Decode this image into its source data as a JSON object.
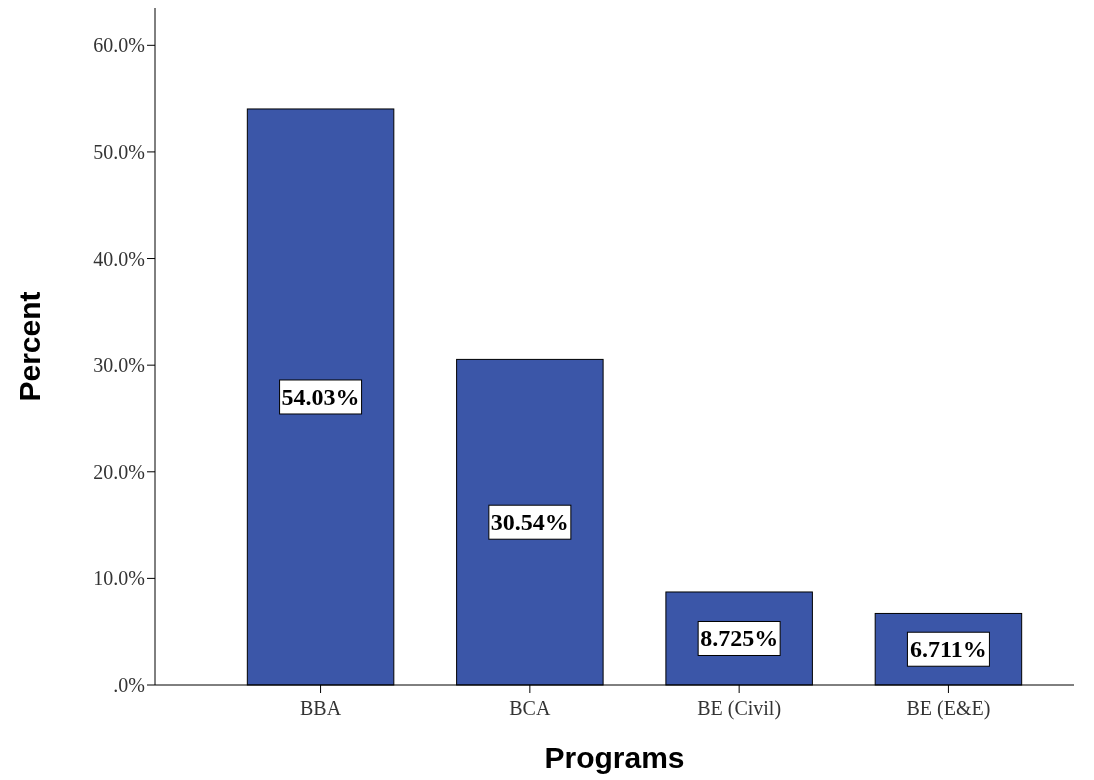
{
  "chart_data": {
    "type": "bar",
    "xlabel": "Programs",
    "ylabel": "Percent",
    "categories": [
      "BBA",
      "BCA",
      "BE (Civil)",
      "BE (E&E)"
    ],
    "values": [
      54.03,
      30.54,
      8.725,
      6.711
    ],
    "value_labels": [
      "54.03%",
      "30.54%",
      "8.725%",
      "6.711%"
    ],
    "color": "#3b56a8",
    "ylim": [
      0,
      63.5
    ],
    "yticks": [
      {
        "value": 0,
        "label": ".0%"
      },
      {
        "value": 10,
        "label": "10.0%"
      },
      {
        "value": 20,
        "label": "20.0%"
      },
      {
        "value": 30,
        "label": "30.0%"
      },
      {
        "value": 40,
        "label": "40.0%"
      },
      {
        "value": 50,
        "label": "50.0%"
      },
      {
        "value": 60,
        "label": "60.0%"
      }
    ],
    "grid": false
  }
}
